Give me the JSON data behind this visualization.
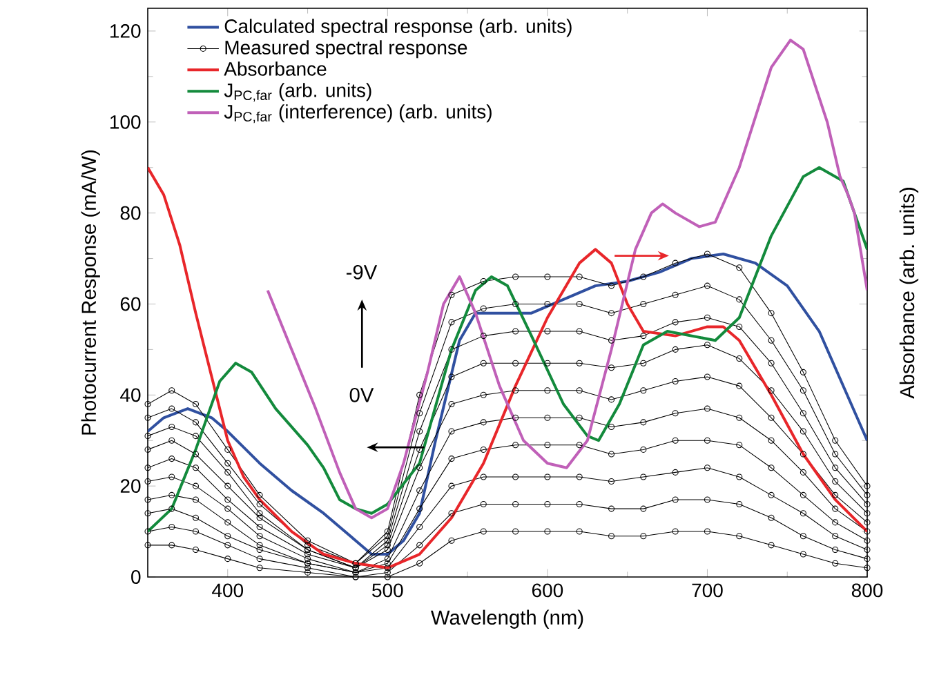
{
  "chart_data": {
    "type": "line",
    "xlabel": "Wavelength (nm)",
    "ylabel": "Photocurrent Response (mA/W)",
    "y2label": "Absorbance (arb. units)",
    "xlim": [
      350,
      800
    ],
    "xticks": [
      400,
      500,
      600,
      700,
      800
    ],
    "ylim": [
      0,
      125
    ],
    "yticks": [
      0,
      20,
      40,
      60,
      80,
      100,
      120
    ],
    "grid": false,
    "legend": "top left",
    "marker": "none",
    "line_style": "solid",
    "annotations": [
      "-9V",
      "0V"
    ],
    "series": [
      {
        "name": "Calculated spectral response (arb. units)",
        "color": "#3050a0",
        "x": [
          350,
          360,
          375,
          390,
          400,
          420,
          440,
          460,
          480,
          490,
          500,
          510,
          520,
          530,
          545,
          555,
          570,
          590,
          610,
          630,
          650,
          670,
          690,
          710,
          730,
          750,
          770,
          790,
          800
        ],
        "values": [
          32,
          35,
          37,
          35,
          32,
          25,
          19,
          14,
          8,
          5,
          5,
          8,
          14,
          30,
          52,
          58,
          58,
          58,
          61,
          64,
          65,
          67,
          70,
          71,
          69,
          64,
          54,
          38,
          30
        ]
      },
      {
        "name": "Measured spectral response",
        "color": "#000000",
        "marker": "circle",
        "x": [
          350,
          365,
          380,
          400,
          420,
          450,
          480,
          500,
          520,
          540,
          560,
          580,
          600,
          620,
          640,
          660,
          680,
          700,
          720,
          740,
          760,
          780,
          800
        ],
        "values": [
          7,
          7,
          6,
          4,
          2,
          1,
          0,
          0,
          3,
          8,
          10,
          10,
          10,
          10,
          9,
          9,
          10,
          10,
          9,
          7,
          5,
          3,
          2
        ]
      },
      {
        "color": "#000000",
        "marker": "circle",
        "x": [
          350,
          365,
          380,
          400,
          420,
          450,
          480,
          500,
          520,
          540,
          560,
          580,
          600,
          620,
          640,
          660,
          680,
          700,
          720,
          740,
          760,
          780,
          800
        ],
        "values": [
          10,
          11,
          10,
          7,
          4,
          2,
          0,
          1,
          7,
          14,
          16,
          16,
          16,
          16,
          15,
          15,
          17,
          17,
          16,
          13,
          9,
          6,
          4
        ]
      },
      {
        "color": "#000000",
        "marker": "circle",
        "x": [
          350,
          365,
          380,
          400,
          420,
          450,
          480,
          500,
          520,
          540,
          560,
          580,
          600,
          620,
          640,
          660,
          680,
          700,
          720,
          740,
          760,
          780,
          800
        ],
        "values": [
          14,
          15,
          13,
          9,
          6,
          3,
          1,
          2,
          11,
          20,
          22,
          22,
          22,
          22,
          21,
          22,
          23,
          24,
          22,
          18,
          14,
          9,
          6
        ]
      },
      {
        "color": "#000000",
        "marker": "circle",
        "x": [
          350,
          365,
          380,
          400,
          420,
          450,
          480,
          500,
          520,
          540,
          560,
          580,
          600,
          620,
          640,
          660,
          680,
          700,
          720,
          740,
          760,
          780,
          800
        ],
        "values": [
          17,
          18,
          17,
          12,
          7,
          3,
          1,
          3,
          15,
          26,
          28,
          29,
          29,
          29,
          27,
          28,
          30,
          30,
          29,
          24,
          18,
          12,
          8
        ]
      },
      {
        "color": "#000000",
        "marker": "circle",
        "x": [
          350,
          365,
          380,
          400,
          420,
          450,
          480,
          500,
          520,
          540,
          560,
          580,
          600,
          620,
          640,
          660,
          680,
          700,
          720,
          740,
          760,
          780,
          800
        ],
        "values": [
          21,
          22,
          20,
          15,
          9,
          4,
          1,
          4,
          19,
          32,
          34,
          35,
          35,
          35,
          33,
          34,
          36,
          37,
          35,
          30,
          23,
          15,
          10
        ]
      },
      {
        "color": "#000000",
        "marker": "circle",
        "x": [
          350,
          365,
          380,
          400,
          420,
          450,
          480,
          500,
          520,
          540,
          560,
          580,
          600,
          620,
          640,
          660,
          680,
          700,
          720,
          740,
          760,
          780,
          800
        ],
        "values": [
          24,
          26,
          24,
          17,
          11,
          5,
          2,
          6,
          24,
          38,
          40,
          41,
          41,
          41,
          39,
          41,
          43,
          44,
          42,
          35,
          27,
          18,
          12
        ]
      },
      {
        "color": "#000000",
        "marker": "circle",
        "x": [
          350,
          365,
          380,
          400,
          420,
          450,
          480,
          500,
          520,
          540,
          560,
          580,
          600,
          620,
          640,
          660,
          680,
          700,
          720,
          740,
          760,
          780,
          800
        ],
        "values": [
          28,
          30,
          27,
          20,
          13,
          6,
          2,
          7,
          28,
          44,
          47,
          47,
          47,
          47,
          46,
          47,
          50,
          51,
          48,
          41,
          32,
          21,
          14
        ]
      },
      {
        "color": "#000000",
        "marker": "circle",
        "x": [
          350,
          365,
          380,
          400,
          420,
          450,
          480,
          500,
          520,
          540,
          560,
          580,
          600,
          620,
          640,
          660,
          680,
          700,
          720,
          740,
          760,
          780,
          800
        ],
        "values": [
          31,
          33,
          31,
          23,
          14,
          6,
          2,
          8,
          32,
          50,
          53,
          54,
          54,
          54,
          52,
          53,
          56,
          57,
          55,
          47,
          36,
          24,
          16
        ]
      },
      {
        "color": "#000000",
        "marker": "circle",
        "x": [
          350,
          365,
          380,
          400,
          420,
          450,
          480,
          500,
          520,
          540,
          560,
          580,
          600,
          620,
          640,
          660,
          680,
          700,
          720,
          740,
          760,
          780,
          800
        ],
        "values": [
          35,
          37,
          34,
          25,
          16,
          7,
          3,
          9,
          36,
          56,
          59,
          60,
          60,
          60,
          58,
          60,
          62,
          64,
          61,
          52,
          41,
          27,
          18
        ]
      },
      {
        "color": "#000000",
        "marker": "circle",
        "x": [
          350,
          365,
          380,
          400,
          420,
          450,
          480,
          500,
          520,
          540,
          560,
          580,
          600,
          620,
          640,
          660,
          680,
          700,
          720,
          740,
          760,
          780,
          800
        ],
        "values": [
          38,
          41,
          38,
          28,
          18,
          8,
          3,
          10,
          40,
          62,
          65,
          66,
          66,
          66,
          64,
          66,
          69,
          71,
          68,
          58,
          45,
          30,
          20
        ]
      },
      {
        "name": "Absorbance",
        "color": "#e8262a",
        "x": [
          350,
          360,
          370,
          380,
          390,
          400,
          410,
          420,
          440,
          460,
          480,
          500,
          520,
          540,
          560,
          580,
          600,
          620,
          630,
          640,
          650,
          660,
          680,
          700,
          710,
          720,
          740,
          760,
          780,
          800
        ],
        "values": [
          90,
          84,
          73,
          58,
          44,
          30,
          22,
          17,
          10,
          5,
          3,
          2,
          5,
          13,
          25,
          42,
          57,
          69,
          72,
          69,
          60,
          54,
          53,
          55,
          55,
          52,
          40,
          27,
          17,
          10
        ]
      },
      {
        "name": "J$_{PC,far}$ (arb. units)",
        "color": "#138a3c",
        "x": [
          350,
          365,
          380,
          395,
          405,
          415,
          430,
          450,
          460,
          470,
          480,
          490,
          500,
          520,
          540,
          555,
          565,
          575,
          590,
          610,
          625,
          632,
          645,
          660,
          675,
          690,
          705,
          720,
          740,
          760,
          770,
          785,
          800
        ],
        "values": [
          10,
          15,
          28,
          43,
          47,
          45,
          37,
          29,
          24,
          17,
          15,
          14,
          16,
          25,
          50,
          63,
          66,
          64,
          53,
          38,
          31,
          30,
          38,
          51,
          54,
          53,
          52,
          57,
          75,
          88,
          90,
          87,
          72
        ]
      },
      {
        "name": "J$_{PC,far}$ (interference) (arb. units)",
        "color": "#c060b8",
        "x": [
          425,
          440,
          455,
          470,
          480,
          490,
          500,
          510,
          525,
          535,
          545,
          555,
          570,
          585,
          600,
          612,
          625,
          640,
          655,
          665,
          672,
          680,
          695,
          705,
          720,
          740,
          752,
          760,
          775,
          783,
          788,
          792,
          800
        ],
        "values": [
          63,
          50,
          37,
          23,
          15,
          13,
          15,
          25,
          45,
          60,
          66,
          58,
          42,
          30,
          25,
          24,
          30,
          50,
          72,
          80,
          82,
          80,
          77,
          78,
          90,
          112,
          118,
          116,
          100,
          88,
          84,
          80,
          63
        ]
      }
    ]
  }
}
